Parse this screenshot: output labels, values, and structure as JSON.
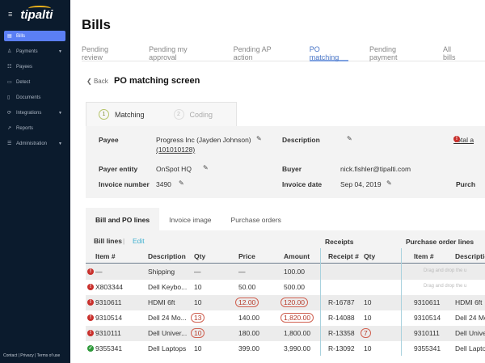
{
  "sidebar": {
    "brand": "tipalti",
    "items": [
      {
        "label": "Bills",
        "icon": "document-icon",
        "active": true
      },
      {
        "label": "Payments",
        "icon": "payments-icon",
        "dropdown": true
      },
      {
        "label": "Payees",
        "icon": "payees-icon"
      },
      {
        "label": "Detect",
        "icon": "detect-icon"
      },
      {
        "label": "Documents",
        "icon": "file-icon"
      },
      {
        "label": "Integrations",
        "icon": "sync-icon",
        "dropdown": true
      },
      {
        "label": "Reports",
        "icon": "chart-icon"
      },
      {
        "label": "Administration",
        "icon": "list-icon",
        "dropdown": true
      }
    ],
    "footer": "Contact  |  Privacy  |  Terms of use"
  },
  "header": {
    "title": "Bills",
    "tabs": [
      "Pending review",
      "Pending my approval",
      "Pending AP action",
      "PO matching",
      "Pending payment",
      "All bills"
    ],
    "active_tab": "PO matching"
  },
  "page": {
    "back": "Back",
    "title": "PO matching screen",
    "steps": [
      {
        "num": "1",
        "label": "Matching"
      },
      {
        "num": "2",
        "label": "Coding"
      }
    ]
  },
  "info": {
    "payee_label": "Payee",
    "payee": "Progress Inc (Jayden Johnson)",
    "payee_id": "(101010128)",
    "description_label": "Description",
    "total_label": "Total a",
    "payer_label": "Payer entity",
    "payer": "OnSpot HQ",
    "buyer_label": "Buyer",
    "buyer": "nick.fishler@tipalti.com",
    "invoice_number_label": "Invoice number",
    "invoice_number": "3490",
    "invoice_date_label": "Invoice date",
    "invoice_date": "Sep 04, 2019",
    "purch_label": "Purch"
  },
  "inner_tabs": [
    "Bill and PO lines",
    "Invoice image",
    "Purchase orders"
  ],
  "table": {
    "bill_lines": "Bill lines",
    "edit": "Edit",
    "receipts": "Receipts",
    "po_lines": "Purchase order lines",
    "headers": [
      "Item #",
      "Description",
      "Qty",
      "Price",
      "Amount",
      "Receipt #",
      "Qty",
      "Item #",
      "Description"
    ],
    "drag_text": "Drag and drop the u",
    "rows": [
      {
        "status": "error",
        "item": "—",
        "desc": "Shipping",
        "qty": "—",
        "price": "—",
        "amount": "100.00",
        "receipt": "",
        "rqty": "",
        "po_item": "",
        "po_desc": "",
        "drag": true
      },
      {
        "status": "error",
        "item": "X803344",
        "desc": "Dell Keybo...",
        "qty": "10",
        "price": "50.00",
        "amount": "500.00",
        "receipt": "",
        "rqty": "",
        "po_item": "",
        "po_desc": "",
        "drag": true
      },
      {
        "status": "error",
        "item": "9310611",
        "desc": "HDMI 6ft",
        "qty": "10",
        "price": "12.00",
        "amount": "120.00",
        "receipt": "R-16787",
        "rqty": "10",
        "po_item": "9310611",
        "po_desc": "HDMI 6ft",
        "flag": [
          "price",
          "amount"
        ]
      },
      {
        "status": "error",
        "item": "9310514",
        "desc": "Dell 24 Mo...",
        "qty": "13",
        "price": "140.00",
        "amount": "1,820.00",
        "receipt": "R-14088",
        "rqty": "10",
        "po_item": "9310514",
        "po_desc": "Dell 24 Mo...",
        "flag": [
          "qty",
          "amount"
        ]
      },
      {
        "status": "error",
        "item": "9310111",
        "desc": "Dell Univer...",
        "qty": "10",
        "price": "180.00",
        "amount": "1,800.00",
        "receipt": "R-13358",
        "rqty": "7",
        "po_item": "9310111",
        "po_desc": "Dell Univer...",
        "flag": [
          "qty",
          "rqty"
        ]
      },
      {
        "status": "ok",
        "item": "9355341",
        "desc": "Dell Laptops",
        "qty": "10",
        "price": "399.00",
        "amount": "3,990.00",
        "receipt": "R-13092",
        "rqty": "10",
        "po_item": "9355341",
        "po_desc": "Dell Laptop",
        "flag": []
      }
    ]
  },
  "colors": {
    "sidebar": "#0b1b2d",
    "active_nav": "#5b7ff5",
    "accent": "#4a76c7",
    "error": "#c9302c",
    "ok": "#2e9a3a"
  }
}
